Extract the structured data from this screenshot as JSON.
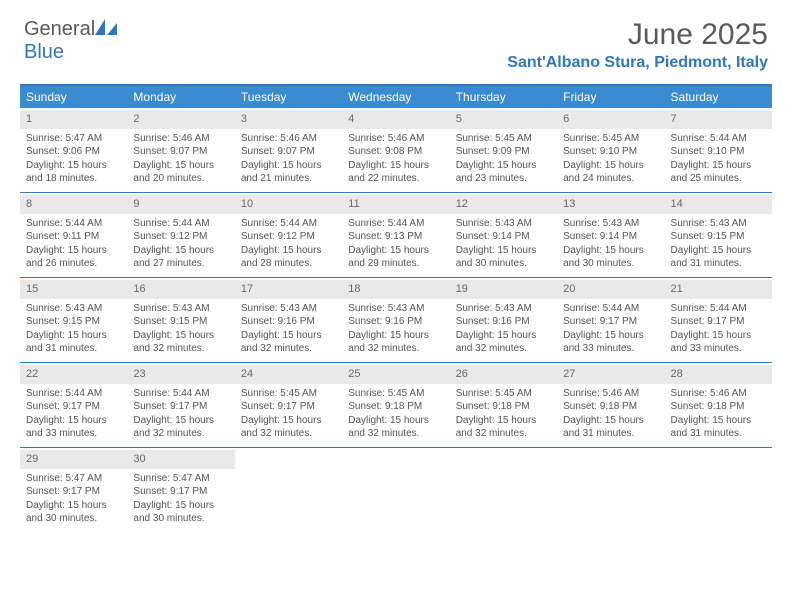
{
  "brand": {
    "word1": "General",
    "word2": "Blue"
  },
  "title": "June 2025",
  "location": "Sant'Albano Stura, Piedmont, Italy",
  "colors": {
    "accent": "#2f78bd",
    "header_bg": "#3a8bd0",
    "daynum_bg": "#e9e9e9",
    "text": "#555555",
    "title_text": "#5a5a5a"
  },
  "day_names": [
    "Sunday",
    "Monday",
    "Tuesday",
    "Wednesday",
    "Thursday",
    "Friday",
    "Saturday"
  ],
  "weeks": [
    [
      {
        "n": "1",
        "sr": "5:47 AM",
        "ss": "9:06 PM",
        "dl": "15 hours and 18 minutes."
      },
      {
        "n": "2",
        "sr": "5:46 AM",
        "ss": "9:07 PM",
        "dl": "15 hours and 20 minutes."
      },
      {
        "n": "3",
        "sr": "5:46 AM",
        "ss": "9:07 PM",
        "dl": "15 hours and 21 minutes."
      },
      {
        "n": "4",
        "sr": "5:46 AM",
        "ss": "9:08 PM",
        "dl": "15 hours and 22 minutes."
      },
      {
        "n": "5",
        "sr": "5:45 AM",
        "ss": "9:09 PM",
        "dl": "15 hours and 23 minutes."
      },
      {
        "n": "6",
        "sr": "5:45 AM",
        "ss": "9:10 PM",
        "dl": "15 hours and 24 minutes."
      },
      {
        "n": "7",
        "sr": "5:44 AM",
        "ss": "9:10 PM",
        "dl": "15 hours and 25 minutes."
      }
    ],
    [
      {
        "n": "8",
        "sr": "5:44 AM",
        "ss": "9:11 PM",
        "dl": "15 hours and 26 minutes."
      },
      {
        "n": "9",
        "sr": "5:44 AM",
        "ss": "9:12 PM",
        "dl": "15 hours and 27 minutes."
      },
      {
        "n": "10",
        "sr": "5:44 AM",
        "ss": "9:12 PM",
        "dl": "15 hours and 28 minutes."
      },
      {
        "n": "11",
        "sr": "5:44 AM",
        "ss": "9:13 PM",
        "dl": "15 hours and 29 minutes."
      },
      {
        "n": "12",
        "sr": "5:43 AM",
        "ss": "9:14 PM",
        "dl": "15 hours and 30 minutes."
      },
      {
        "n": "13",
        "sr": "5:43 AM",
        "ss": "9:14 PM",
        "dl": "15 hours and 30 minutes."
      },
      {
        "n": "14",
        "sr": "5:43 AM",
        "ss": "9:15 PM",
        "dl": "15 hours and 31 minutes."
      }
    ],
    [
      {
        "n": "15",
        "sr": "5:43 AM",
        "ss": "9:15 PM",
        "dl": "15 hours and 31 minutes."
      },
      {
        "n": "16",
        "sr": "5:43 AM",
        "ss": "9:15 PM",
        "dl": "15 hours and 32 minutes."
      },
      {
        "n": "17",
        "sr": "5:43 AM",
        "ss": "9:16 PM",
        "dl": "15 hours and 32 minutes."
      },
      {
        "n": "18",
        "sr": "5:43 AM",
        "ss": "9:16 PM",
        "dl": "15 hours and 32 minutes."
      },
      {
        "n": "19",
        "sr": "5:43 AM",
        "ss": "9:16 PM",
        "dl": "15 hours and 32 minutes."
      },
      {
        "n": "20",
        "sr": "5:44 AM",
        "ss": "9:17 PM",
        "dl": "15 hours and 33 minutes."
      },
      {
        "n": "21",
        "sr": "5:44 AM",
        "ss": "9:17 PM",
        "dl": "15 hours and 33 minutes."
      }
    ],
    [
      {
        "n": "22",
        "sr": "5:44 AM",
        "ss": "9:17 PM",
        "dl": "15 hours and 33 minutes."
      },
      {
        "n": "23",
        "sr": "5:44 AM",
        "ss": "9:17 PM",
        "dl": "15 hours and 32 minutes."
      },
      {
        "n": "24",
        "sr": "5:45 AM",
        "ss": "9:17 PM",
        "dl": "15 hours and 32 minutes."
      },
      {
        "n": "25",
        "sr": "5:45 AM",
        "ss": "9:18 PM",
        "dl": "15 hours and 32 minutes."
      },
      {
        "n": "26",
        "sr": "5:45 AM",
        "ss": "9:18 PM",
        "dl": "15 hours and 32 minutes."
      },
      {
        "n": "27",
        "sr": "5:46 AM",
        "ss": "9:18 PM",
        "dl": "15 hours and 31 minutes."
      },
      {
        "n": "28",
        "sr": "5:46 AM",
        "ss": "9:18 PM",
        "dl": "15 hours and 31 minutes."
      }
    ],
    [
      {
        "n": "29",
        "sr": "5:47 AM",
        "ss": "9:17 PM",
        "dl": "15 hours and 30 minutes."
      },
      {
        "n": "30",
        "sr": "5:47 AM",
        "ss": "9:17 PM",
        "dl": "15 hours and 30 minutes."
      },
      null,
      null,
      null,
      null,
      null
    ]
  ],
  "labels": {
    "sunrise": "Sunrise: ",
    "sunset": "Sunset: ",
    "daylight": "Daylight: "
  }
}
